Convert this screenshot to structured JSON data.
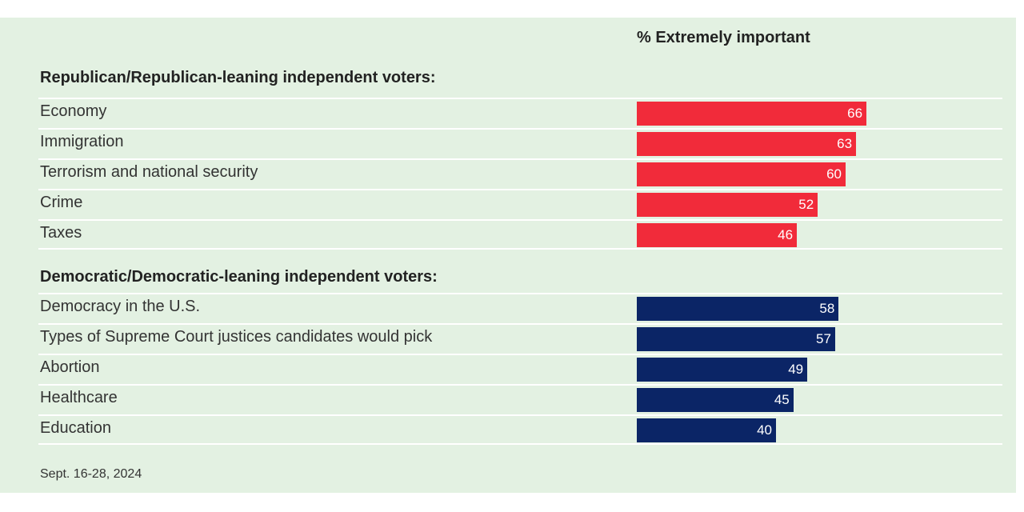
{
  "chart_data": {
    "type": "bar",
    "orientation": "horizontal",
    "column_header": "% Extremely important",
    "xlim": [
      0,
      100
    ],
    "grid": false,
    "groups": [
      {
        "title": "Republican/Republican-leaning independent voters:",
        "color": "#f12b3a",
        "categories": [
          "Economy",
          "Immigration",
          "Terrorism and national security",
          "Crime",
          "Taxes"
        ],
        "values": [
          66,
          63,
          60,
          52,
          46
        ]
      },
      {
        "title": "Democratic/Democratic-leaning independent voters:",
        "color": "#0b2566",
        "categories": [
          "Democracy in the U.S.",
          "Types of Supreme Court justices candidates would pick",
          "Abortion",
          "Healthcare",
          "Education"
        ],
        "values": [
          58,
          57,
          49,
          45,
          40
        ]
      }
    ],
    "footnote": "Sept. 16-28, 2024"
  }
}
